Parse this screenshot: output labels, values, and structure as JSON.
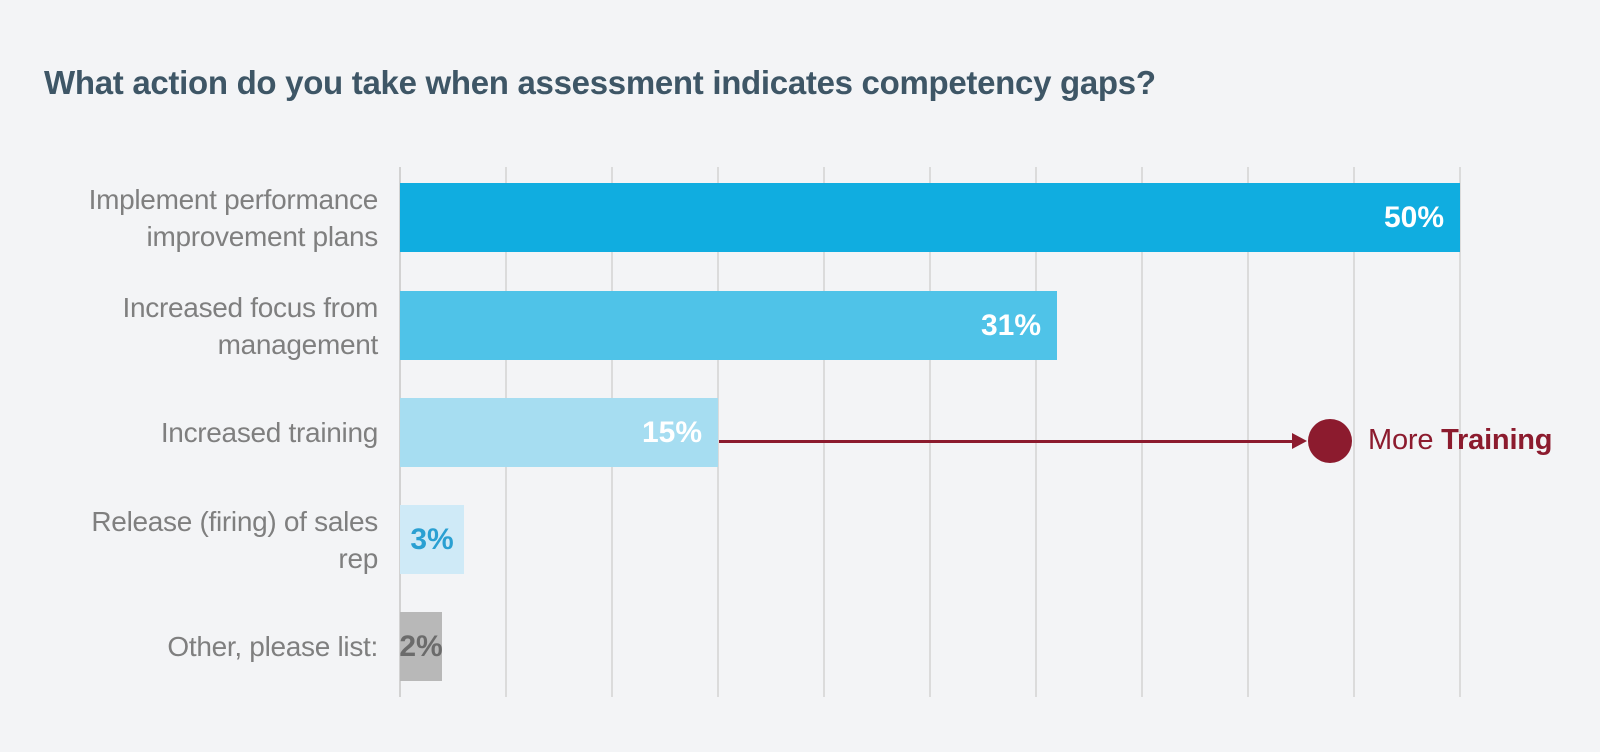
{
  "title": "What action do you take when assessment indicates competency gaps?",
  "colors": {
    "background": "#f3f4f6",
    "title": "#3e5666",
    "category_label": "#7f7f7f",
    "gridline": "#dbdbdb",
    "axis_line": "#d2d2d2"
  },
  "chart_data": {
    "type": "bar",
    "orientation": "horizontal",
    "title": "What action do you take when assessment indicates competency gaps?",
    "xlabel": "",
    "ylabel": "",
    "xlim": [
      0,
      50
    ],
    "grid_interval": 5,
    "grid": "vertical-lines-only",
    "legend": "none",
    "categories": [
      "Implement performance improvement plans",
      "Increased focus from management",
      "Increased training",
      "Release (firing) of sales rep",
      "Other, please list:"
    ],
    "category_lines": [
      [
        "Implement performance",
        "improvement plans"
      ],
      [
        "Increased focus from",
        "management"
      ],
      [
        "Increased training"
      ],
      [
        "Release (firing) of sales",
        "rep"
      ],
      [
        "Other, please list:"
      ]
    ],
    "values": [
      50,
      31,
      15,
      3,
      2
    ],
    "value_labels": [
      "50%",
      "31%",
      "15%",
      "3%",
      "2%"
    ],
    "bar_colors": [
      "#10ade0",
      "#4fc3e8",
      "#a6ddf1",
      "#cfeaf7",
      "#b8b8b8"
    ],
    "value_label_colors": [
      "#ffffff",
      "#ffffff",
      "#ffffff",
      "#2aa0d2",
      "#6b6b6b"
    ],
    "value_label_positions": [
      "inside-right",
      "inside-right",
      "inside-right",
      "center",
      "center"
    ],
    "annotation": {
      "text_regular": "More ",
      "text_bold": "Training",
      "color": "#8c1b2e",
      "points_from_category": "Increased training",
      "marker": "filled-circle",
      "connector": "arrow-right"
    }
  }
}
